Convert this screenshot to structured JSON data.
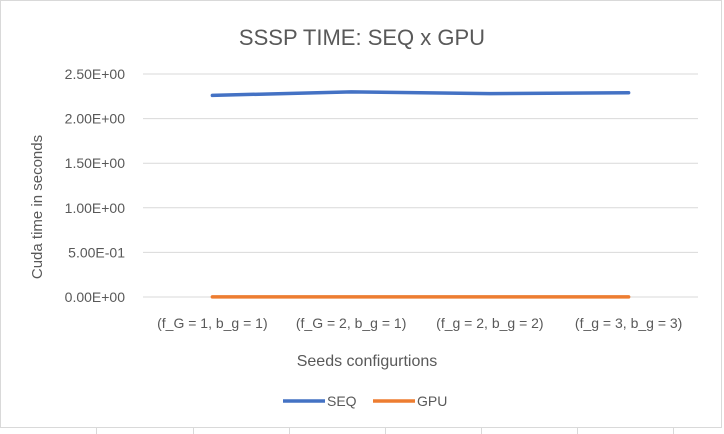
{
  "chart_data": {
    "type": "line",
    "title": "SSSP TIME: SEQ x GPU",
    "xlabel": "Seeds configurtions",
    "ylabel": "Cuda time in seconds",
    "categories": [
      "(f_G = 1, b_g = 1)",
      "(f_G = 2, b_g = 1)",
      "(f_g = 2, b_g = 2)",
      "(f_g = 3, b_g = 3)"
    ],
    "ylim": [
      0,
      2.5
    ],
    "yticks": [
      0,
      0.5,
      1.0,
      1.5,
      2.0,
      2.5
    ],
    "ytick_labels": [
      "0.00E+00",
      "5.00E-01",
      "1.00E+00",
      "1.50E+00",
      "2.00E+00",
      "2.50E+00"
    ],
    "grid": true,
    "legend": "bottom",
    "series": [
      {
        "name": "SEQ",
        "color": "#4472c4",
        "values": [
          2.26,
          2.3,
          2.28,
          2.29
        ]
      },
      {
        "name": "GPU",
        "color": "#ed7d31",
        "values": [
          0.001,
          0.001,
          0.001,
          0.001
        ]
      }
    ]
  }
}
